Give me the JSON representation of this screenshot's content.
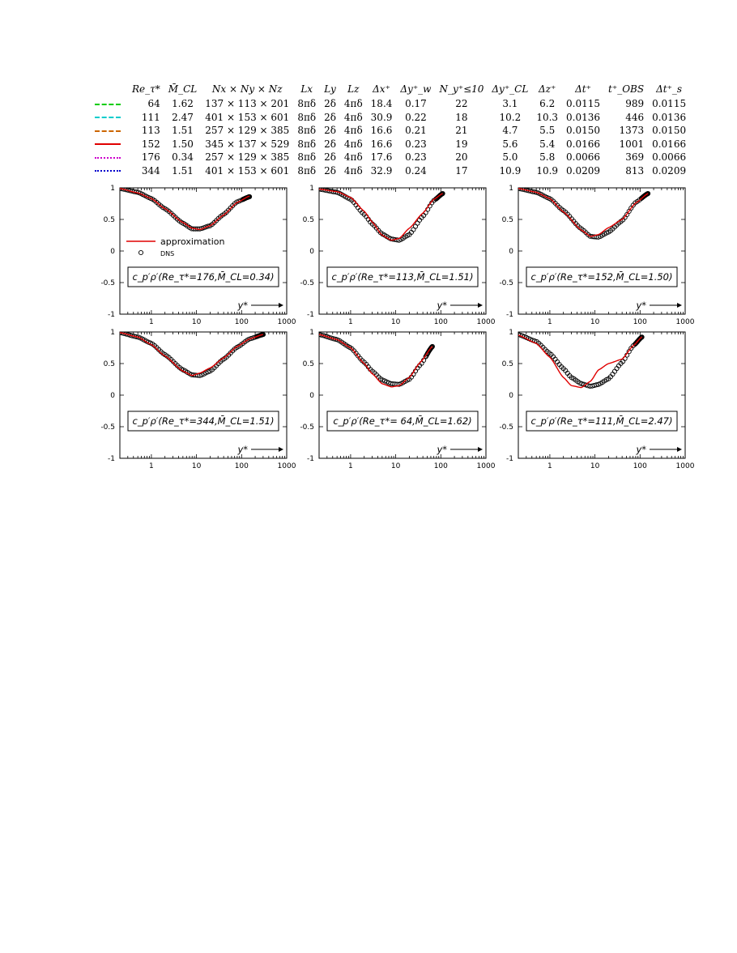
{
  "table": {
    "headers": [
      "",
      "Re_τ*",
      "M̄_CL",
      "Nx × Ny × Nz",
      "Lx",
      "Ly",
      "Lz",
      "Δx⁺",
      "Δy⁺_w",
      "N_y⁺≤10",
      "Δy⁺_CL",
      "Δz⁺",
      "Δt⁺",
      "t⁺_OBS",
      "Δt⁺_s"
    ],
    "rows": [
      {
        "color": "#00cc00",
        "dash": "dashed",
        "cells": [
          "64",
          "1.62",
          "137 × 113 × 201",
          "8πδ",
          "2δ",
          "4πδ",
          "18.4",
          "0.17",
          "22",
          "3.1",
          "6.2",
          "0.0115",
          "989",
          "0.0115"
        ]
      },
      {
        "color": "#00cccc",
        "dash": "dashdot",
        "cells": [
          "111",
          "2.47",
          "401 × 153 × 601",
          "8πδ",
          "2δ",
          "4πδ",
          "30.9",
          "0.22",
          "18",
          "10.2",
          "10.3",
          "0.0136",
          "446",
          "0.0136"
        ]
      },
      {
        "color": "#cc6600",
        "dash": "dashdot",
        "cells": [
          "113",
          "1.51",
          "257 × 129 × 385",
          "8πδ",
          "2δ",
          "4πδ",
          "16.6",
          "0.21",
          "21",
          "4.7",
          "5.5",
          "0.0150",
          "1373",
          "0.0150"
        ]
      },
      {
        "color": "#e00000",
        "dash": "solid",
        "cells": [
          "152",
          "1.50",
          "345 × 137 × 529",
          "8πδ",
          "2δ",
          "4πδ",
          "16.6",
          "0.23",
          "19",
          "5.6",
          "5.4",
          "0.0166",
          "1001",
          "0.0166"
        ]
      },
      {
        "color": "#cc00cc",
        "dash": "dotted",
        "cells": [
          "176",
          "0.34",
          "257 × 129 × 385",
          "8πδ",
          "2δ",
          "4πδ",
          "17.6",
          "0.23",
          "20",
          "5.0",
          "5.8",
          "0.0066",
          "369",
          "0.0066"
        ]
      },
      {
        "color": "#0000cc",
        "dash": "dotted",
        "cells": [
          "344",
          "1.51",
          "401 × 153 × 601",
          "8πδ",
          "2δ",
          "4πδ",
          "32.9",
          "0.24",
          "17",
          "10.9",
          "10.9",
          "0.0209",
          "813",
          "0.0209"
        ]
      }
    ]
  },
  "legend": {
    "approximation": "approximation",
    "dns": "DNS"
  },
  "colors": {
    "approximation": "#e00000",
    "dns": "#000000"
  },
  "chart_data": [
    {
      "type": "line",
      "label": "c_p′ρ′(Re_τ*=176,M̄_CL=0.34)",
      "ylim": [
        -1,
        1
      ],
      "xlim": [
        0.2,
        1000
      ],
      "xscale": "log",
      "xticks": [
        "1",
        "10",
        "100",
        "1000"
      ],
      "yticks": [
        "1",
        "0.5",
        "0",
        "-0.5",
        "-1"
      ],
      "xlabel": "y*",
      "show_legend": true,
      "series": [
        {
          "name": "approximation",
          "x": [
            0.2,
            0.5,
            1,
            2,
            5,
            8,
            12,
            20,
            40,
            80,
            150
          ],
          "y": [
            0.99,
            0.92,
            0.83,
            0.67,
            0.45,
            0.36,
            0.34,
            0.4,
            0.57,
            0.77,
            0.87
          ]
        },
        {
          "name": "DNS",
          "x": [
            0.2,
            0.5,
            1,
            2,
            5,
            8,
            12,
            20,
            40,
            80,
            150
          ],
          "y": [
            0.99,
            0.93,
            0.83,
            0.67,
            0.44,
            0.35,
            0.35,
            0.4,
            0.58,
            0.78,
            0.86
          ]
        }
      ]
    },
    {
      "type": "line",
      "label": "c_p′ρ′(Re_τ*=113,M̄_CL=1.51)",
      "ylim": [
        -1,
        1
      ],
      "xlim": [
        0.2,
        1000
      ],
      "xscale": "log",
      "xticks": [
        "1",
        "10",
        "100",
        "1000"
      ],
      "yticks": [
        "1",
        "0.5",
        "0",
        "-0.5",
        "-1"
      ],
      "xlabel": "y*",
      "show_legend": false,
      "series": [
        {
          "name": "approximation",
          "x": [
            0.2,
            0.5,
            1,
            2,
            3,
            5,
            8,
            12,
            20,
            40,
            70,
            110
          ],
          "y": [
            0.98,
            0.94,
            0.85,
            0.63,
            0.46,
            0.25,
            0.17,
            0.2,
            0.36,
            0.6,
            0.82,
            0.91
          ]
        },
        {
          "name": "DNS",
          "x": [
            0.2,
            0.5,
            1,
            2,
            3,
            5,
            8,
            12,
            20,
            40,
            70,
            110
          ],
          "y": [
            0.98,
            0.93,
            0.82,
            0.58,
            0.43,
            0.27,
            0.19,
            0.17,
            0.26,
            0.55,
            0.8,
            0.91
          ]
        }
      ]
    },
    {
      "type": "line",
      "label": "c_p′ρ′(Re_τ*=152,M̄_CL=1.50)",
      "ylim": [
        -1,
        1
      ],
      "xlim": [
        0.2,
        1000
      ],
      "xscale": "log",
      "xticks": [
        "1",
        "10",
        "100",
        "1000"
      ],
      "yticks": [
        "1",
        "0.5",
        "0",
        "-0.5",
        "-1"
      ],
      "xlabel": "y*",
      "show_legend": false,
      "series": [
        {
          "name": "approximation",
          "x": [
            0.2,
            0.5,
            1,
            2,
            5,
            8,
            12,
            20,
            40,
            80,
            150
          ],
          "y": [
            0.99,
            0.93,
            0.83,
            0.62,
            0.33,
            0.23,
            0.26,
            0.37,
            0.5,
            0.76,
            0.91
          ]
        },
        {
          "name": "DNS",
          "x": [
            0.2,
            0.5,
            1,
            2,
            5,
            8,
            12,
            20,
            40,
            80,
            150
          ],
          "y": [
            0.99,
            0.93,
            0.83,
            0.64,
            0.35,
            0.23,
            0.22,
            0.3,
            0.48,
            0.77,
            0.91
          ]
        }
      ]
    },
    {
      "type": "line",
      "label": "c_p′ρ′(Re_τ*=344,M̄_CL=1.51)",
      "ylim": [
        -1,
        1
      ],
      "xlim": [
        0.2,
        1000
      ],
      "xscale": "log",
      "xticks": [
        "1",
        "10",
        "100",
        "1000"
      ],
      "yticks": [
        "1",
        "0.5",
        "0",
        "-0.5",
        "-1"
      ],
      "xlabel": "y*",
      "show_legend": false,
      "series": [
        {
          "name": "approximation",
          "x": [
            0.2,
            0.5,
            1,
            2,
            5,
            8,
            12,
            20,
            40,
            80,
            150,
            300
          ],
          "y": [
            0.99,
            0.92,
            0.8,
            0.62,
            0.38,
            0.31,
            0.35,
            0.43,
            0.59,
            0.77,
            0.89,
            0.96
          ]
        },
        {
          "name": "DNS",
          "x": [
            0.2,
            0.5,
            1,
            2,
            5,
            8,
            12,
            20,
            40,
            80,
            150,
            300
          ],
          "y": [
            0.99,
            0.92,
            0.82,
            0.64,
            0.4,
            0.32,
            0.31,
            0.38,
            0.57,
            0.76,
            0.89,
            0.96
          ]
        }
      ]
    },
    {
      "type": "line",
      "label": "c_p′ρ′(Re_τ*= 64,M̄_CL=1.62)",
      "ylim": [
        -1,
        1
      ],
      "xlim": [
        0.2,
        1000
      ],
      "xscale": "log",
      "xticks": [
        "1",
        "10",
        "100",
        "1000"
      ],
      "yticks": [
        "1",
        "0.5",
        "0",
        "-0.5",
        "-1"
      ],
      "xlabel": "y*",
      "show_legend": false,
      "series": [
        {
          "name": "approximation",
          "x": [
            0.2,
            0.5,
            1,
            2,
            3,
            5,
            8,
            12,
            20,
            35,
            65
          ],
          "y": [
            0.96,
            0.88,
            0.75,
            0.5,
            0.34,
            0.18,
            0.13,
            0.15,
            0.28,
            0.52,
            0.77
          ]
        },
        {
          "name": "DNS",
          "x": [
            0.2,
            0.5,
            1,
            2,
            3,
            5,
            8,
            12,
            20,
            35,
            65
          ],
          "y": [
            0.96,
            0.88,
            0.75,
            0.52,
            0.38,
            0.24,
            0.18,
            0.17,
            0.25,
            0.48,
            0.77
          ]
        }
      ]
    },
    {
      "type": "line",
      "label": "c_p′ρ′(Re_τ*=111,M̄_CL=2.47)",
      "ylim": [
        -1,
        1
      ],
      "xlim": [
        0.2,
        1000
      ],
      "xscale": "log",
      "xticks": [
        "1",
        "10",
        "100",
        "1000"
      ],
      "yticks": [
        "1",
        "0.5",
        "0",
        "-0.5",
        "-1"
      ],
      "xlabel": "y*",
      "show_legend": false,
      "series": [
        {
          "name": "approximation",
          "x": [
            0.2,
            0.5,
            1,
            2,
            3,
            5,
            8,
            12,
            20,
            40,
            70,
            110
          ],
          "y": [
            0.95,
            0.82,
            0.6,
            0.28,
            0.15,
            0.12,
            0.22,
            0.4,
            0.5,
            0.57,
            0.78,
            0.92
          ]
        },
        {
          "name": "DNS",
          "x": [
            0.2,
            0.5,
            1,
            2,
            3,
            5,
            8,
            12,
            20,
            40,
            70,
            110
          ],
          "y": [
            0.96,
            0.85,
            0.66,
            0.42,
            0.28,
            0.18,
            0.14,
            0.17,
            0.26,
            0.52,
            0.78,
            0.92
          ]
        }
      ]
    }
  ]
}
